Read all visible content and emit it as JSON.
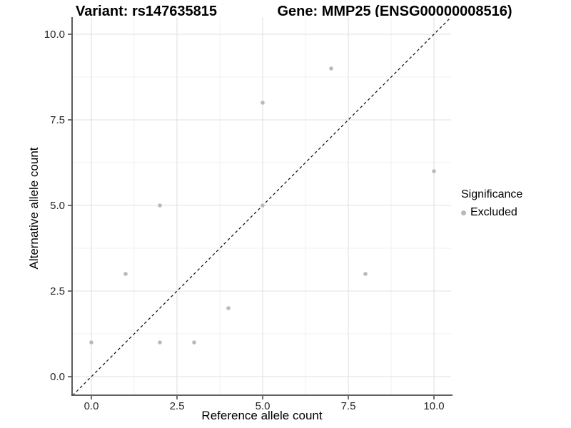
{
  "titles": {
    "variant": "Variant: rs147635815",
    "gene": "Gene: MMP25 (ENSG00000008516)"
  },
  "axes": {
    "x_label": "Reference allele count",
    "y_label": "Alternative allele count"
  },
  "legend": {
    "title": "Significance",
    "items": [
      {
        "label": "Excluded",
        "color": "#b9b9b9"
      }
    ]
  },
  "chart_data": {
    "type": "scatter",
    "title": "Variant: rs147635815 / Gene: MMP25 (ENSG00000008516)",
    "xlabel": "Reference allele count",
    "ylabel": "Alternative allele count",
    "xlim": [
      -0.55,
      10.55
    ],
    "ylim": [
      -0.55,
      10.55
    ],
    "x_ticks": [
      0,
      2.5,
      5,
      7.5,
      10
    ],
    "x_tick_labels": [
      "0.0",
      "2.5",
      "5.0",
      "7.5",
      "10.0"
    ],
    "y_ticks": [
      0,
      2.5,
      5,
      7.5,
      10
    ],
    "y_tick_labels": [
      "0.0",
      "2.5",
      "5.0",
      "7.5",
      "10.0"
    ],
    "minor_grid": [
      1.25,
      3.75,
      6.25,
      8.75
    ],
    "grid": true,
    "legend_position": "right",
    "identity_line": {
      "type": "abline",
      "slope": 1,
      "intercept": 0,
      "style": "dashed",
      "color": "#1a1a1a"
    },
    "series": [
      {
        "name": "Excluded",
        "color": "#b9b9b9",
        "points": [
          [
            0,
            1
          ],
          [
            1,
            3
          ],
          [
            2,
            1
          ],
          [
            2,
            5
          ],
          [
            3,
            1
          ],
          [
            4,
            2
          ],
          [
            5,
            5
          ],
          [
            5,
            8
          ],
          [
            7,
            9
          ],
          [
            8,
            3
          ],
          [
            10,
            6
          ]
        ]
      }
    ],
    "colors": {
      "background": "#ffffff",
      "grid_major": "#e2e2e2",
      "grid_minor": "#f0f0f0",
      "axis_line": "#4a4a4a",
      "tick_mark": "#333333",
      "tick_label": "#262626",
      "point": "#b9b9b9"
    }
  }
}
